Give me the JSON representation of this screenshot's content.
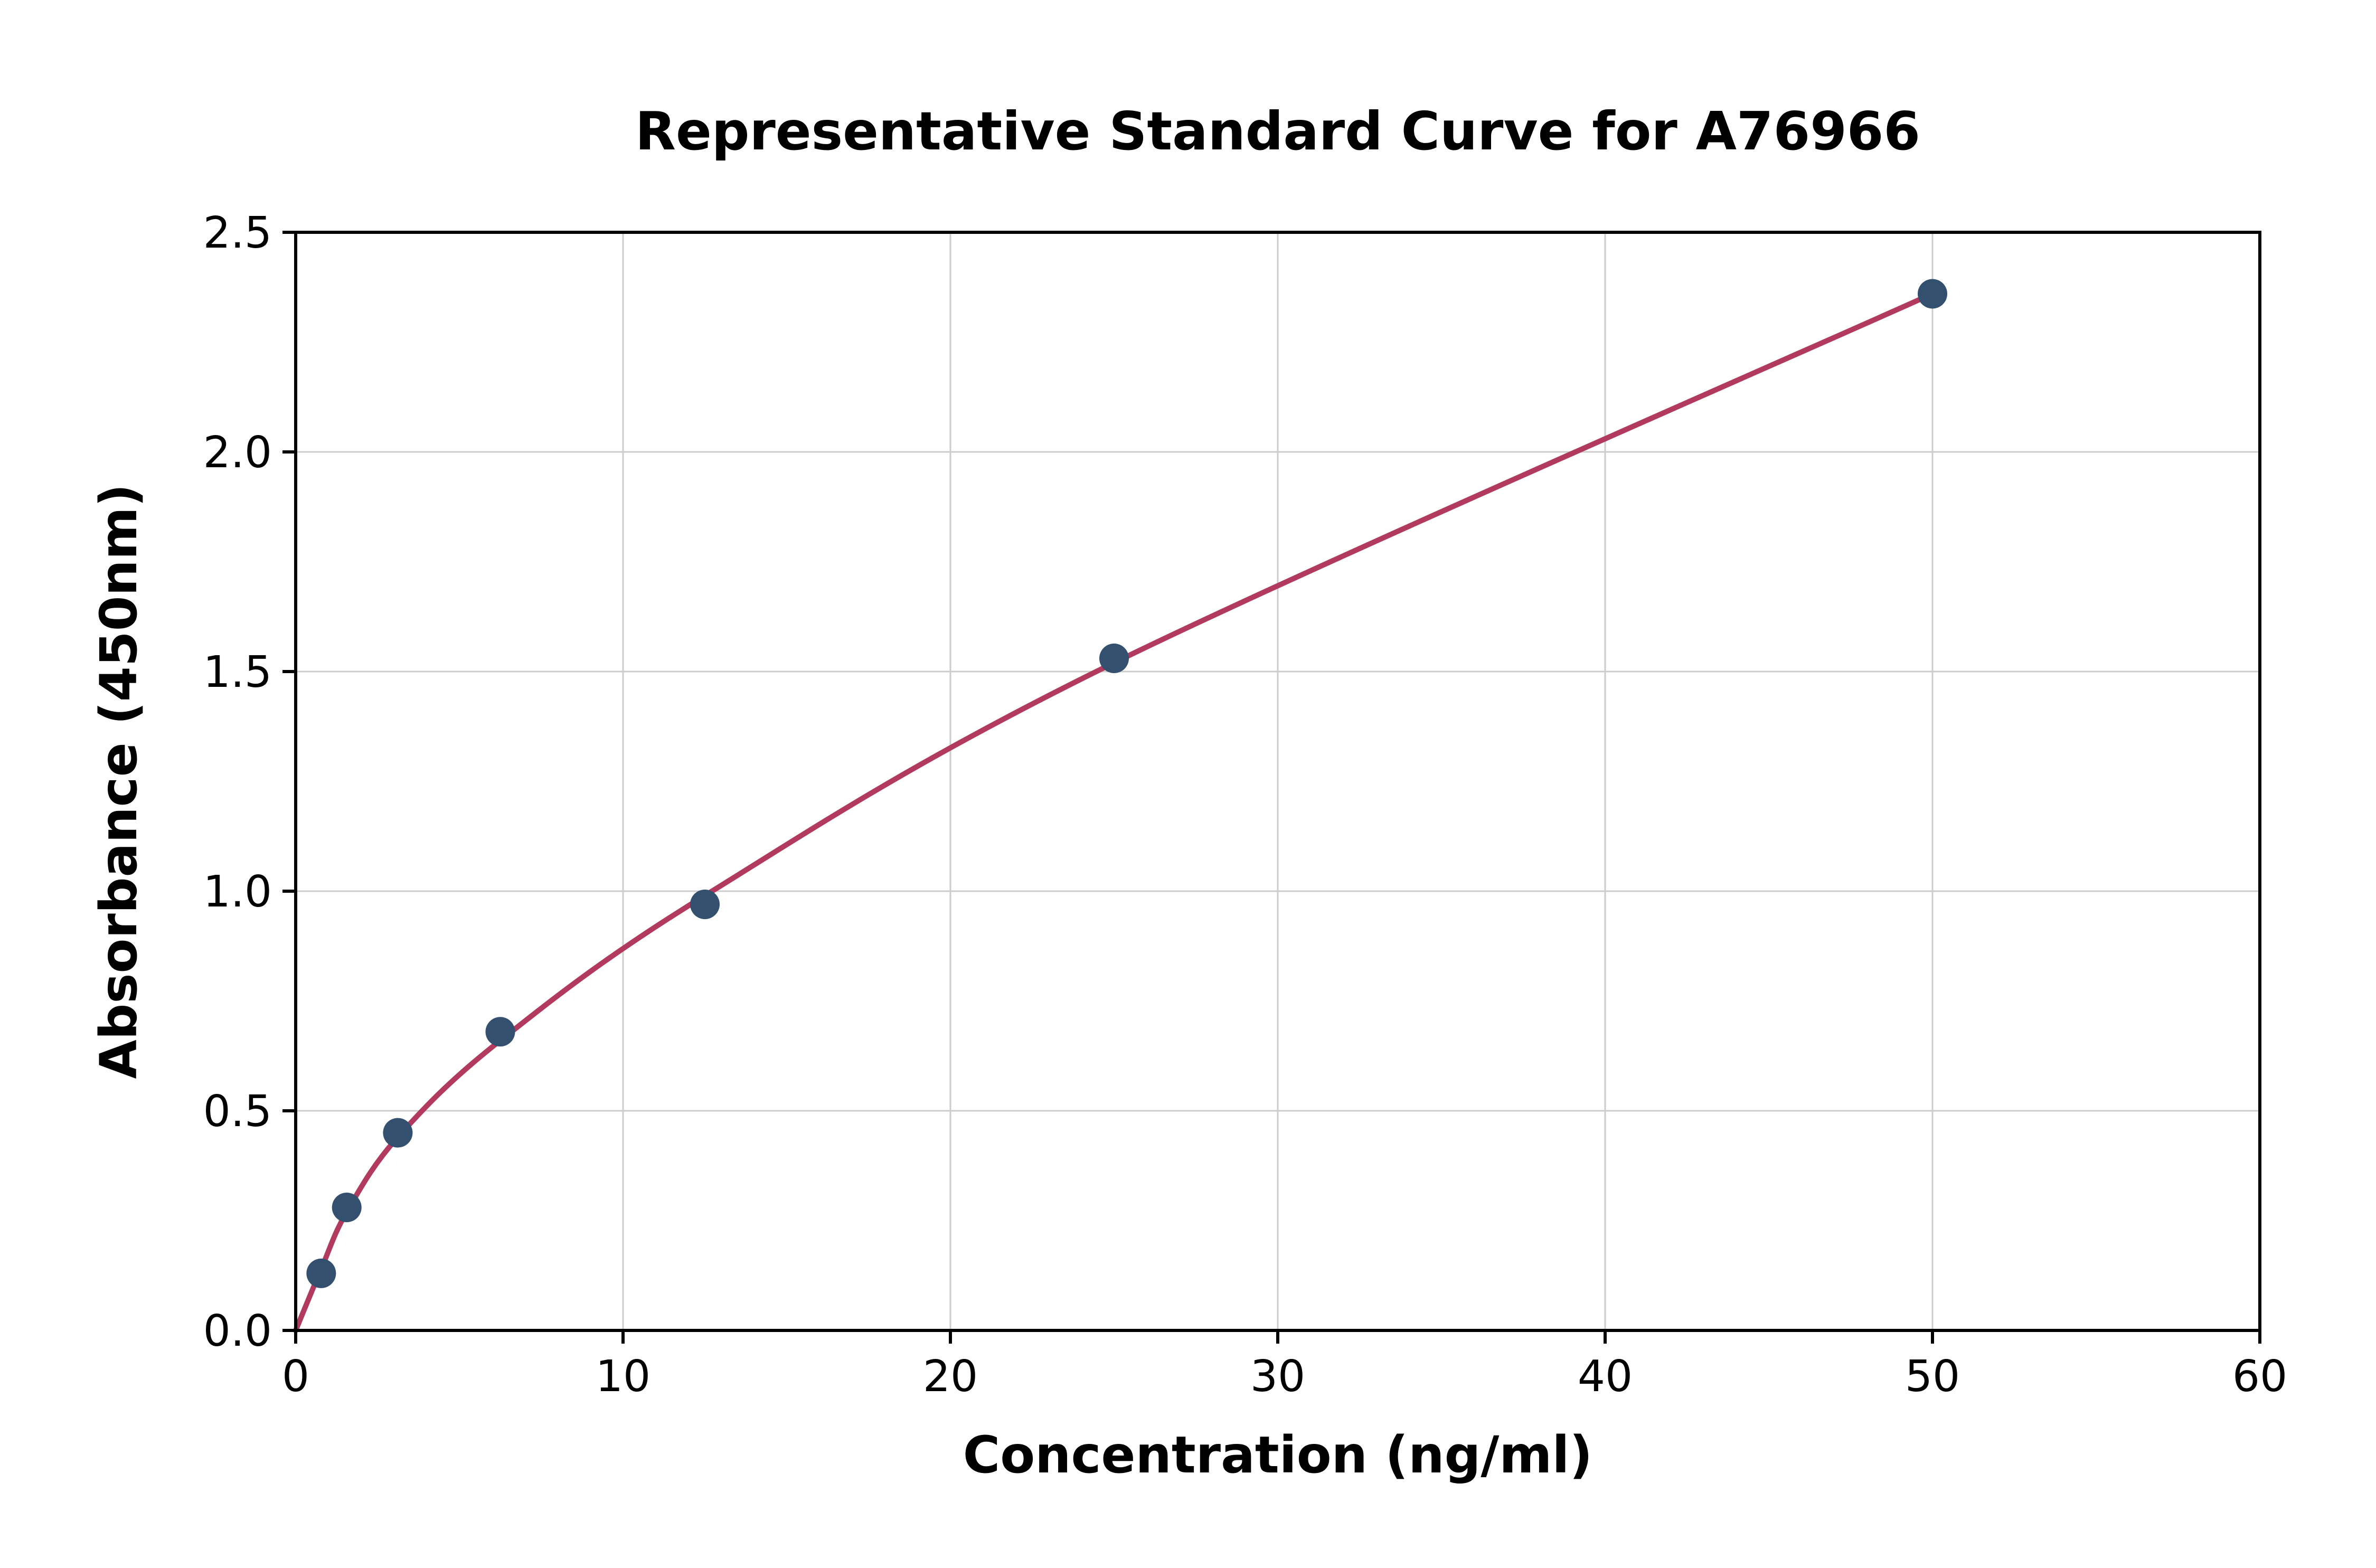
{
  "chart_data": {
    "type": "scatter",
    "title": "Representative Standard Curve for A76966",
    "xlabel": "Concentration (ng/ml)",
    "ylabel": "Absorbance (450nm)",
    "xlim": [
      0,
      60
    ],
    "ylim": [
      0,
      2.5
    ],
    "xticks": [
      0,
      10,
      20,
      30,
      40,
      50,
      60
    ],
    "xtick_labels": [
      "0",
      "10",
      "20",
      "30",
      "40",
      "50",
      "60"
    ],
    "yticks": [
      0.0,
      0.5,
      1.0,
      1.5,
      2.0,
      2.5
    ],
    "ytick_labels": [
      "0.0",
      "0.5",
      "1.0",
      "1.5",
      "2.0",
      "2.5"
    ],
    "grid": true,
    "legend": "none",
    "series": [
      {
        "name": "standard-points",
        "type": "scatter",
        "x": [
          0.78,
          1.56,
          3.12,
          6.25,
          12.5,
          25,
          50
        ],
        "y": [
          0.13,
          0.28,
          0.45,
          0.68,
          0.97,
          1.53,
          2.36
        ]
      },
      {
        "name": "fitted-curve",
        "type": "line",
        "x": [
          0,
          0.78,
          1.56,
          3.12,
          6.25,
          12.5,
          25,
          50
        ],
        "y": [
          0.0,
          0.14,
          0.27,
          0.44,
          0.66,
          0.99,
          1.52,
          2.36
        ]
      }
    ],
    "colors": {
      "curve": "#b23a5e",
      "points": "#33506e",
      "grid": "#cccccc",
      "axis": "#000000",
      "background": "#ffffff"
    }
  }
}
